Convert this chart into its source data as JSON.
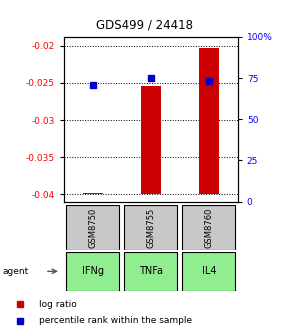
{
  "title": "GDS499 / 24418",
  "samples": [
    "GSM8750",
    "GSM8755",
    "GSM8760"
  ],
  "agents": [
    "IFNg",
    "TNFa",
    "IL4"
  ],
  "log_ratio_values": [
    -0.0398,
    -0.0254,
    -0.0203
  ],
  "log_ratio_base": -0.04,
  "percentile_values": [
    71,
    75,
    73
  ],
  "ylim_left": [
    -0.041,
    -0.0188
  ],
  "ylim_right": [
    0,
    100
  ],
  "yticks_left": [
    -0.04,
    -0.035,
    -0.03,
    -0.025,
    -0.02
  ],
  "yticks_right": [
    0,
    25,
    50,
    75,
    100
  ],
  "ytick_labels_left": [
    "-0.04",
    "-0.035",
    "-0.03",
    "-0.025",
    "-0.02"
  ],
  "ytick_labels_right": [
    "0",
    "25",
    "50",
    "75",
    "100%"
  ],
  "bar_color": "#cc0000",
  "dot_color": "#0000cc",
  "agent_color": "#90ee90",
  "gsm_color": "#c8c8c8",
  "background_color": "#ffffff"
}
